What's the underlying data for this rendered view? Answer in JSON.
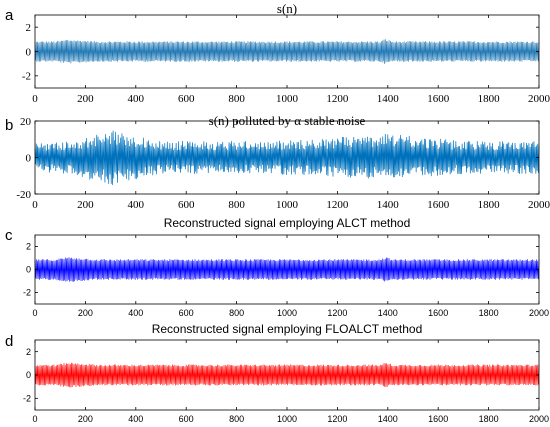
{
  "chart_data": [
    {
      "type": "line",
      "panel_letter": "a",
      "title": "s(n)",
      "xlim": [
        0,
        2000
      ],
      "ylim": [
        -3,
        3
      ],
      "x_ticks": [
        0,
        200,
        400,
        600,
        800,
        1000,
        1200,
        1400,
        1600,
        1800,
        2000
      ],
      "y_ticks": [
        -2,
        0,
        2
      ],
      "grid": false,
      "series": [
        {
          "color": "#1f77b4",
          "envelope_upper": [
            [
              0,
              0.85
            ],
            [
              80,
              0.85
            ],
            [
              130,
              1.0
            ],
            [
              250,
              0.85
            ],
            [
              1370,
              0.85
            ],
            [
              1390,
              1.05
            ],
            [
              1420,
              0.85
            ],
            [
              2000,
              0.85
            ]
          ],
          "envelope_lower": [
            [
              0,
              -0.85
            ],
            [
              80,
              -0.85
            ],
            [
              130,
              -1.0
            ],
            [
              250,
              -0.85
            ],
            [
              1370,
              -0.85
            ],
            [
              1390,
              -1.05
            ],
            [
              1420,
              -0.85
            ],
            [
              2000,
              -0.85
            ]
          ]
        }
      ]
    },
    {
      "type": "line",
      "panel_letter": "b",
      "title": "s(n) polluted by α stable noise",
      "xlim": [
        0,
        2000
      ],
      "ylim": [
        -20,
        20
      ],
      "x_ticks": [
        0,
        200,
        400,
        600,
        800,
        1000,
        1200,
        1400,
        1600,
        1800,
        2000
      ],
      "y_ticks": [
        -20,
        0,
        20
      ],
      "grid": false,
      "series": [
        {
          "color": "#0072bd",
          "envelope_upper": [
            [
              0,
              8
            ],
            [
              150,
              9
            ],
            [
              300,
              15
            ],
            [
              500,
              9
            ],
            [
              900,
              9
            ],
            [
              1100,
              10
            ],
            [
              1400,
              13
            ],
            [
              1700,
              9
            ],
            [
              2000,
              9
            ]
          ],
          "envelope_lower": [
            [
              0,
              -8
            ],
            [
              150,
              -9
            ],
            [
              300,
              -16
            ],
            [
              500,
              -9
            ],
            [
              900,
              -9
            ],
            [
              1100,
              -10
            ],
            [
              1400,
              -12
            ],
            [
              1700,
              -9
            ],
            [
              2000,
              -9
            ]
          ]
        }
      ]
    },
    {
      "type": "line",
      "panel_letter": "c",
      "title": "Reconstructed signal employing ALCT method",
      "xlim": [
        0,
        2000
      ],
      "ylim": [
        -3,
        3
      ],
      "x_ticks": [
        0,
        200,
        400,
        600,
        800,
        1000,
        1200,
        1400,
        1600,
        1800,
        2000
      ],
      "y_ticks": [
        -2,
        0,
        2
      ],
      "grid": false,
      "series": [
        {
          "color": "#0000ff",
          "envelope_upper": [
            [
              0,
              0.9
            ],
            [
              80,
              0.9
            ],
            [
              130,
              1.1
            ],
            [
              250,
              0.9
            ],
            [
              1370,
              0.9
            ],
            [
              1390,
              1.1
            ],
            [
              1420,
              0.9
            ],
            [
              2000,
              0.9
            ]
          ],
          "envelope_lower": [
            [
              0,
              -0.9
            ],
            [
              80,
              -0.9
            ],
            [
              130,
              -1.1
            ],
            [
              250,
              -0.9
            ],
            [
              1370,
              -0.9
            ],
            [
              1390,
              -1.1
            ],
            [
              1420,
              -0.9
            ],
            [
              2000,
              -0.9
            ]
          ]
        }
      ]
    },
    {
      "type": "line",
      "panel_letter": "d",
      "title": "Reconstructed signal employing FLOALCT method",
      "xlim": [
        0,
        2000
      ],
      "ylim": [
        -3,
        3
      ],
      "x_ticks": [
        0,
        200,
        400,
        600,
        800,
        1000,
        1200,
        1400,
        1600,
        1800,
        2000
      ],
      "y_ticks": [
        -2,
        0,
        2
      ],
      "grid": false,
      "series": [
        {
          "color": "#ff0000",
          "envelope_upper": [
            [
              0,
              0.9
            ],
            [
              80,
              0.9
            ],
            [
              130,
              1.1
            ],
            [
              250,
              0.9
            ],
            [
              1370,
              0.9
            ],
            [
              1390,
              1.1
            ],
            [
              1420,
              0.9
            ],
            [
              2000,
              0.9
            ]
          ],
          "envelope_lower": [
            [
              0,
              -0.9
            ],
            [
              80,
              -0.9
            ],
            [
              130,
              -1.1
            ],
            [
              250,
              -0.9
            ],
            [
              1370,
              -0.9
            ],
            [
              1390,
              -1.1
            ],
            [
              1420,
              -0.9
            ],
            [
              2000,
              -0.9
            ]
          ]
        }
      ]
    }
  ]
}
